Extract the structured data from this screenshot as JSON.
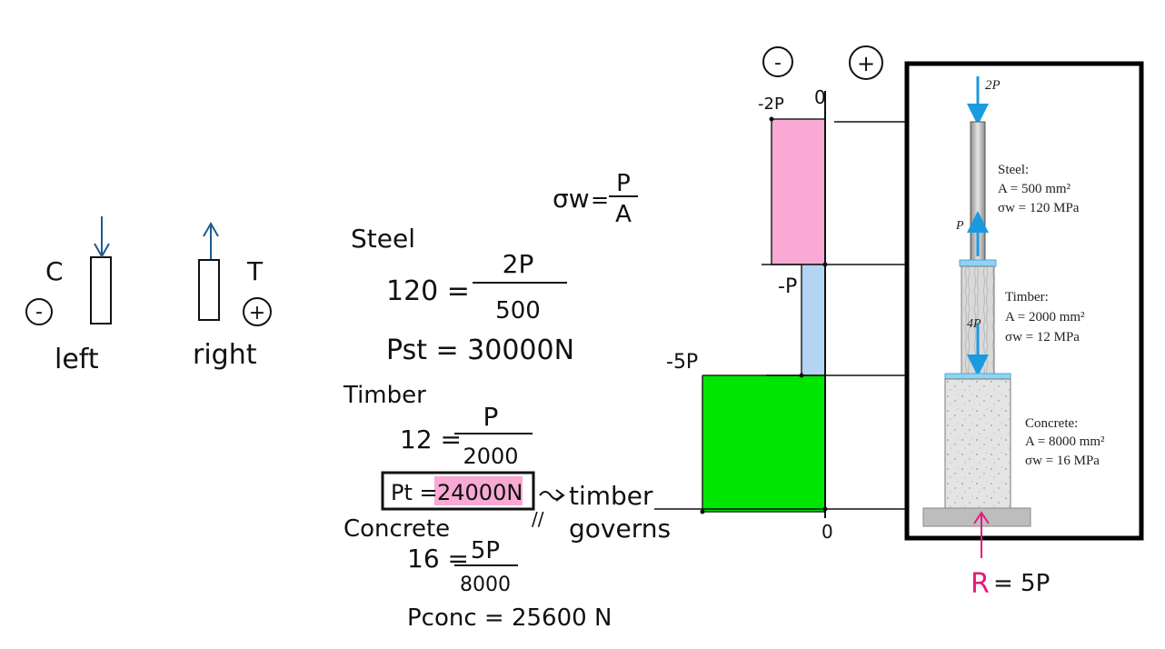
{
  "sign_convention": {
    "compression": {
      "letter": "C",
      "sign": "-",
      "side": "left"
    },
    "tension": {
      "letter": "T",
      "sign": "+",
      "side": "right"
    }
  },
  "formula": {
    "lhs": "σw",
    "eq": "=",
    "num": "P",
    "den": "A"
  },
  "calc": {
    "steel": {
      "heading": "Steel",
      "lhs": "120 =",
      "num": "2P",
      "den": "500",
      "result": "Pst = 30000N"
    },
    "timber": {
      "heading": "Timber",
      "lhs": "12 =",
      "num": "P",
      "den": "2000",
      "result_label": "Pt =",
      "result_value": "24000N",
      "mark": "//",
      "note_line1": "timber",
      "note_line2": "governs"
    },
    "concrete": {
      "heading": "Concrete",
      "lhs": "16 =",
      "num": "5P",
      "den": "8000",
      "result": "Pconc = 25600 N"
    }
  },
  "force_diagram": {
    "neg_sign": "-",
    "pos_sign": "+",
    "top_left_label": "-2P",
    "top_zero": "0",
    "mid_label": "-P",
    "low_label": "-5P",
    "bottom_zero": "0",
    "colors": {
      "steel": "#f8a9d4",
      "timber": "#b3d4f2",
      "concrete": "#00e600"
    }
  },
  "figure": {
    "top_load": "2P",
    "steel_label": "Steel:",
    "steel_area": "A = 500 mm²",
    "steel_stress": "σw = 120 MPa",
    "timber_label": "Timber:",
    "timber_area": "A = 2000 mm²",
    "timber_stress": "σw = 12 MPa",
    "concrete_label": "Concrete:",
    "concrete_area": "A = 8000 mm²",
    "concrete_stress": "σw = 16 MPa",
    "p_label": "P",
    "four_p_label": "4P"
  },
  "reaction": {
    "label": "R",
    "value": "= 5P",
    "color": "#e6197a"
  }
}
